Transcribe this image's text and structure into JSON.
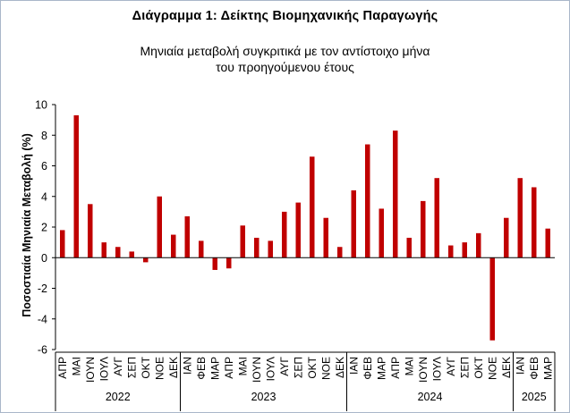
{
  "chart_data": {
    "type": "bar",
    "title": "Διάγραμμα 1: Δείκτης Βιομηχανικής Παραγωγής",
    "subtitle": "Μηνιαία μεταβολή συγκριτικά με τον αντίστοιχο μήνα του προηγούμενου έτους",
    "ylabel": "Ποσοστιαία Μηνιαία Μεταβολή (%)",
    "xlabel": "",
    "ylim": [
      -6,
      10
    ],
    "yticks": [
      10,
      8,
      6,
      4,
      2,
      0,
      -2,
      -4,
      -6
    ],
    "grid": false,
    "legend": "none",
    "bar_color": "#c00000",
    "categories": [
      "ΑΠΡ",
      "ΜΑΙ",
      "ΙΟΥΝ",
      "ΙΟΥΛ",
      "ΑΥΓ",
      "ΣΕΠ",
      "ΟΚΤ",
      "ΝΟΕ",
      "ΔΕΚ",
      "ΙΑΝ",
      "ΦΕΒ",
      "ΜΑΡ",
      "ΑΠΡ",
      "ΜΑΙ",
      "ΙΟΥΝ",
      "ΙΟΥΛ",
      "ΑΥΓ",
      "ΣΕΠ",
      "ΟΚΤ",
      "ΝΟΕ",
      "ΔΕΚ",
      "ΙΑΝ",
      "ΦΕΒ",
      "ΜΑΡ",
      "ΑΠΡ",
      "ΜΑΙ",
      "ΙΟΥΝ",
      "ΙΟΥΛ",
      "ΑΥΓ",
      "ΣΕΠ",
      "ΟΚΤ",
      "ΝΟΕ",
      "ΔΕΚ",
      "ΙΑΝ",
      "ΦΕΒ",
      "ΜΑΡ"
    ],
    "values": [
      1.8,
      9.3,
      3.5,
      1.0,
      0.7,
      0.4,
      -0.3,
      4.0,
      1.5,
      2.7,
      1.1,
      -0.8,
      -0.7,
      2.1,
      1.3,
      1.1,
      3.0,
      3.6,
      6.6,
      2.6,
      0.7,
      4.4,
      7.4,
      3.2,
      8.3,
      1.3,
      3.7,
      5.2,
      0.8,
      1.0,
      1.6,
      -5.4,
      2.6,
      5.2,
      4.6,
      1.9
    ],
    "year_groups": [
      {
        "label": "2022",
        "count": 9
      },
      {
        "label": "2023",
        "count": 12
      },
      {
        "label": "2024",
        "count": 12
      },
      {
        "label": "2025",
        "count": 3
      }
    ]
  }
}
